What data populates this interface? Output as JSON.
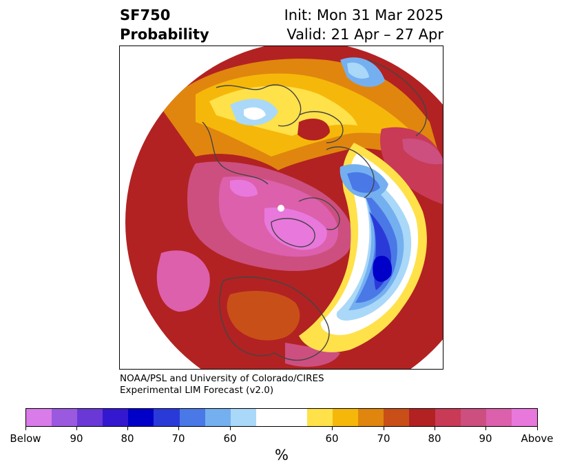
{
  "header": {
    "variable": "SF750",
    "product": "Probability",
    "init": "Init: Mon 31 Mar 2025",
    "valid": "Valid: 21 Apr – 27 Apr"
  },
  "credit": {
    "line1": "NOAA/PSL and University of Colorado/CIRES",
    "line2": "Experimental LIM Forecast (v2.0)"
  },
  "colorbar": {
    "colors": [
      "#d97be8",
      "#9b59e0",
      "#6a38d6",
      "#3418d0",
      "#0000c8",
      "#2a3ad8",
      "#4a78e6",
      "#74b0f0",
      "#aad8f8",
      "#ffffff",
      "#ffe14a",
      "#f5b80a",
      "#e0860e",
      "#c85018",
      "#b22222",
      "#c83a55",
      "#cc4f80",
      "#dc60ac",
      "#e878dc"
    ],
    "labels": [
      "Below",
      "90",
      "80",
      "70",
      "60",
      "60",
      "70",
      "80",
      "90",
      "Above"
    ],
    "unit": "%"
  },
  "map": {
    "colors": {
      "above_max": "#e878dc",
      "above_90": "#dc60ac",
      "above_85": "#cc4f80",
      "above_80": "#c83a55",
      "above_75": "#b22222",
      "above_70": "#c85018",
      "above_65": "#e0860e",
      "above_60": "#f5b80a",
      "above_55": "#ffe14a",
      "below_55": "#aad8f8",
      "below_60": "#74b0f0",
      "below_65": "#4a78e6",
      "below_70": "#2a3ad8",
      "below_75": "#0000c8",
      "coast": "#444444"
    }
  }
}
